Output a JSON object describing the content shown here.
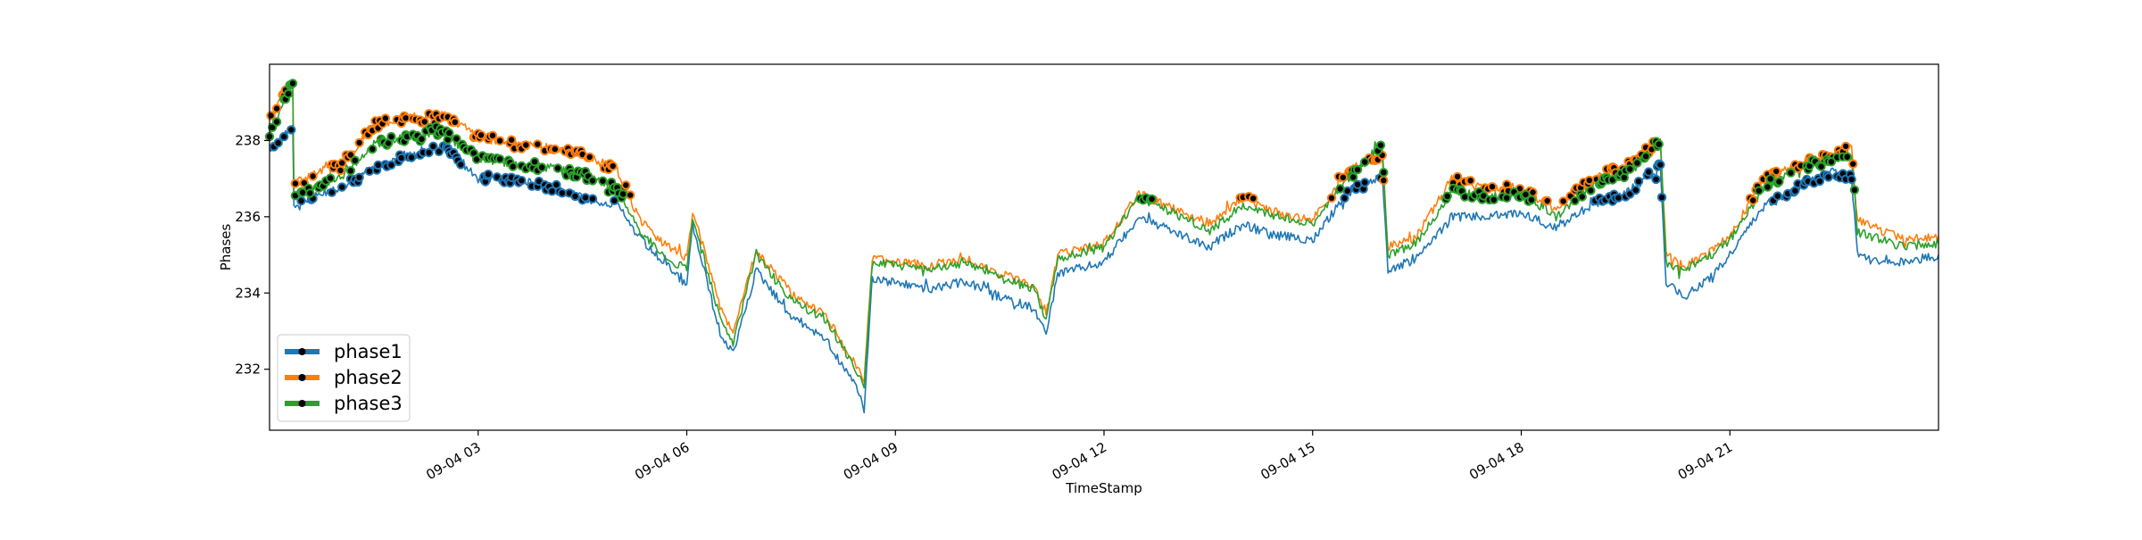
{
  "chart_data": {
    "type": "line",
    "title": "",
    "xlabel": "TimeStamp",
    "ylabel": "Phases",
    "x_range": [
      "2024-09-04 00:00",
      "2024-09-05 00:00"
    ],
    "ylim": [
      230.4,
      240.0
    ],
    "x_ticks": [
      {
        "value": "2024-09-04 03:00",
        "label": "09-04 03"
      },
      {
        "value": "2024-09-04 06:00",
        "label": "09-04 06"
      },
      {
        "value": "2024-09-04 09:00",
        "label": "09-04 09"
      },
      {
        "value": "2024-09-04 12:00",
        "label": "09-04 12"
      },
      {
        "value": "2024-09-04 15:00",
        "label": "09-04 15"
      },
      {
        "value": "2024-09-04 18:00",
        "label": "09-04 18"
      },
      {
        "value": "2024-09-04 21:00",
        "label": "09-04 21"
      }
    ],
    "y_ticks": [
      {
        "value": 232,
        "label": "232"
      },
      {
        "value": 234,
        "label": "234"
      },
      {
        "value": 236,
        "label": "236"
      },
      {
        "value": 238,
        "label": "238"
      }
    ],
    "grid": false,
    "legend_position": "lower-left",
    "series": [
      {
        "name": "phase1",
        "color": "#1f77b4",
        "marker_color": "#000000",
        "points": [
          [
            "2024-09-04 00:00",
            237.8
          ],
          [
            "2024-09-04 00:20",
            238.4
          ],
          [
            "2024-09-04 00:21",
            236.2
          ],
          [
            "2024-09-04 00:45",
            236.6
          ],
          [
            "2024-09-04 01:00",
            236.7
          ],
          [
            "2024-09-04 01:30",
            237.3
          ],
          [
            "2024-09-04 02:00",
            237.6
          ],
          [
            "2024-09-04 02:30",
            237.8
          ],
          [
            "2024-09-04 03:00",
            237.0
          ],
          [
            "2024-09-04 03:30",
            237.0
          ],
          [
            "2024-09-04 04:00",
            236.8
          ],
          [
            "2024-09-04 04:30",
            236.5
          ],
          [
            "2024-09-04 05:00",
            236.3
          ],
          [
            "2024-09-04 05:20",
            235.4
          ],
          [
            "2024-09-04 05:40",
            234.8
          ],
          [
            "2024-09-04 06:00",
            234.2
          ],
          [
            "2024-09-04 06:05",
            235.8
          ],
          [
            "2024-09-04 06:30",
            232.8
          ],
          [
            "2024-09-04 06:40",
            232.4
          ],
          [
            "2024-09-04 07:00",
            234.6
          ],
          [
            "2024-09-04 07:30",
            233.4
          ],
          [
            "2024-09-04 08:00",
            232.8
          ],
          [
            "2024-09-04 08:30",
            231.3
          ],
          [
            "2024-09-04 08:33",
            230.9
          ],
          [
            "2024-09-04 08:40",
            234.4
          ],
          [
            "2024-09-04 09:30",
            234.1
          ],
          [
            "2024-09-04 10:00",
            234.3
          ],
          [
            "2024-09-04 10:30",
            233.9
          ],
          [
            "2024-09-04 11:00",
            233.6
          ],
          [
            "2024-09-04 11:10",
            232.9
          ],
          [
            "2024-09-04 11:20",
            234.5
          ],
          [
            "2024-09-04 12:00",
            234.8
          ],
          [
            "2024-09-04 12:30",
            236.0
          ],
          [
            "2024-09-04 13:00",
            235.6
          ],
          [
            "2024-09-04 13:30",
            235.2
          ],
          [
            "2024-09-04 14:00",
            235.8
          ],
          [
            "2024-09-04 14:30",
            235.5
          ],
          [
            "2024-09-04 15:00",
            235.4
          ],
          [
            "2024-09-04 15:30",
            236.6
          ],
          [
            "2024-09-04 16:00",
            237.1
          ],
          [
            "2024-09-04 16:05",
            234.6
          ],
          [
            "2024-09-04 16:30",
            234.9
          ],
          [
            "2024-09-04 17:00",
            236.0
          ],
          [
            "2024-09-04 17:30",
            236.0
          ],
          [
            "2024-09-04 18:00",
            236.1
          ],
          [
            "2024-09-04 18:30",
            235.7
          ],
          [
            "2024-09-04 19:00",
            236.3
          ],
          [
            "2024-09-04 19:30",
            236.6
          ],
          [
            "2024-09-04 20:00",
            237.3
          ],
          [
            "2024-09-04 20:05",
            234.3
          ],
          [
            "2024-09-04 20:20",
            233.9
          ],
          [
            "2024-09-04 20:40",
            234.3
          ],
          [
            "2024-09-04 21:00",
            235.0
          ],
          [
            "2024-09-04 21:30",
            236.3
          ],
          [
            "2024-09-04 22:00",
            236.8
          ],
          [
            "2024-09-04 22:30",
            237.2
          ],
          [
            "2024-09-04 22:45",
            237.0
          ],
          [
            "2024-09-04 22:50",
            235.0
          ],
          [
            "2024-09-04 23:30",
            234.8
          ],
          [
            "2024-09-05 00:00",
            235.0
          ]
        ]
      },
      {
        "name": "phase2",
        "color": "#ff7f0e",
        "marker_color": "#000000",
        "points": [
          [
            "2024-09-04 00:00",
            238.5
          ],
          [
            "2024-09-04 00:20",
            239.6
          ],
          [
            "2024-09-04 00:21",
            236.9
          ],
          [
            "2024-09-04 00:45",
            237.2
          ],
          [
            "2024-09-04 01:00",
            237.3
          ],
          [
            "2024-09-04 01:30",
            238.4
          ],
          [
            "2024-09-04 02:00",
            238.6
          ],
          [
            "2024-09-04 02:30",
            238.7
          ],
          [
            "2024-09-04 03:00",
            238.1
          ],
          [
            "2024-09-04 03:30",
            237.9
          ],
          [
            "2024-09-04 04:00",
            237.8
          ],
          [
            "2024-09-04 04:30",
            237.7
          ],
          [
            "2024-09-04 05:00",
            237.2
          ],
          [
            "2024-09-04 05:20",
            235.9
          ],
          [
            "2024-09-04 05:40",
            235.3
          ],
          [
            "2024-09-04 06:00",
            234.9
          ],
          [
            "2024-09-04 06:05",
            236.2
          ],
          [
            "2024-09-04 06:30",
            233.5
          ],
          [
            "2024-09-04 06:40",
            233.0
          ],
          [
            "2024-09-04 07:00",
            235.1
          ],
          [
            "2024-09-04 07:30",
            234.0
          ],
          [
            "2024-09-04 08:00",
            233.4
          ],
          [
            "2024-09-04 08:30",
            231.9
          ],
          [
            "2024-09-04 08:33",
            231.6
          ],
          [
            "2024-09-04 08:40",
            234.9
          ],
          [
            "2024-09-04 09:30",
            234.7
          ],
          [
            "2024-09-04 10:00",
            234.9
          ],
          [
            "2024-09-04 10:30",
            234.5
          ],
          [
            "2024-09-04 11:00",
            234.2
          ],
          [
            "2024-09-04 11:10",
            233.5
          ],
          [
            "2024-09-04 11:20",
            235.0
          ],
          [
            "2024-09-04 12:00",
            235.3
          ],
          [
            "2024-09-04 12:30",
            236.6
          ],
          [
            "2024-09-04 13:00",
            236.2
          ],
          [
            "2024-09-04 13:30",
            235.8
          ],
          [
            "2024-09-04 14:00",
            236.5
          ],
          [
            "2024-09-04 14:30",
            236.1
          ],
          [
            "2024-09-04 15:00",
            235.9
          ],
          [
            "2024-09-04 15:30",
            237.2
          ],
          [
            "2024-09-04 16:00",
            237.6
          ],
          [
            "2024-09-04 16:05",
            235.2
          ],
          [
            "2024-09-04 16:30",
            235.5
          ],
          [
            "2024-09-04 17:00",
            237.0
          ],
          [
            "2024-09-04 17:30",
            236.7
          ],
          [
            "2024-09-04 18:00",
            236.8
          ],
          [
            "2024-09-04 18:30",
            236.2
          ],
          [
            "2024-09-04 19:00",
            237.0
          ],
          [
            "2024-09-04 19:30",
            237.3
          ],
          [
            "2024-09-04 20:00",
            238.0
          ],
          [
            "2024-09-04 20:05",
            235.0
          ],
          [
            "2024-09-04 20:20",
            234.7
          ],
          [
            "2024-09-04 20:40",
            235.0
          ],
          [
            "2024-09-04 21:00",
            235.5
          ],
          [
            "2024-09-04 21:30",
            237.0
          ],
          [
            "2024-09-04 22:00",
            237.4
          ],
          [
            "2024-09-04 22:30",
            237.6
          ],
          [
            "2024-09-04 22:45",
            237.8
          ],
          [
            "2024-09-04 22:50",
            235.9
          ],
          [
            "2024-09-04 23:30",
            235.4
          ],
          [
            "2024-09-05 00:00",
            235.5
          ]
        ]
      },
      {
        "name": "phase3",
        "color": "#2ca02c",
        "marker_color": "#000000",
        "points": [
          [
            "2024-09-04 00:00",
            238.2
          ],
          [
            "2024-09-04 00:20",
            239.5
          ],
          [
            "2024-09-04 00:21",
            236.5
          ],
          [
            "2024-09-04 00:45",
            236.9
          ],
          [
            "2024-09-04 01:00",
            237.0
          ],
          [
            "2024-09-04 01:30",
            237.9
          ],
          [
            "2024-09-04 02:00",
            238.1
          ],
          [
            "2024-09-04 02:30",
            238.2
          ],
          [
            "2024-09-04 03:00",
            237.5
          ],
          [
            "2024-09-04 03:30",
            237.4
          ],
          [
            "2024-09-04 04:00",
            237.3
          ],
          [
            "2024-09-04 04:30",
            237.1
          ],
          [
            "2024-09-04 05:00",
            236.8
          ],
          [
            "2024-09-04 05:20",
            235.6
          ],
          [
            "2024-09-04 05:40",
            235.0
          ],
          [
            "2024-09-04 06:00",
            234.6
          ],
          [
            "2024-09-04 06:05",
            236.0
          ],
          [
            "2024-09-04 06:30",
            233.2
          ],
          [
            "2024-09-04 06:40",
            232.7
          ],
          [
            "2024-09-04 07:00",
            235.0
          ],
          [
            "2024-09-04 07:30",
            233.8
          ],
          [
            "2024-09-04 08:00",
            233.3
          ],
          [
            "2024-09-04 08:30",
            231.8
          ],
          [
            "2024-09-04 08:33",
            231.5
          ],
          [
            "2024-09-04 08:40",
            234.8
          ],
          [
            "2024-09-04 09:30",
            234.6
          ],
          [
            "2024-09-04 10:00",
            234.8
          ],
          [
            "2024-09-04 10:30",
            234.4
          ],
          [
            "2024-09-04 11:00",
            234.1
          ],
          [
            "2024-09-04 11:10",
            233.3
          ],
          [
            "2024-09-04 11:20",
            234.9
          ],
          [
            "2024-09-04 12:00",
            235.2
          ],
          [
            "2024-09-04 12:30",
            236.5
          ],
          [
            "2024-09-04 13:00",
            236.1
          ],
          [
            "2024-09-04 13:30",
            235.6
          ],
          [
            "2024-09-04 14:00",
            236.3
          ],
          [
            "2024-09-04 14:30",
            236.0
          ],
          [
            "2024-09-04 15:00",
            235.8
          ],
          [
            "2024-09-04 15:30",
            237.0
          ],
          [
            "2024-09-04 16:00",
            237.9
          ],
          [
            "2024-09-04 16:05",
            235.0
          ],
          [
            "2024-09-04 16:30",
            235.3
          ],
          [
            "2024-09-04 17:00",
            236.7
          ],
          [
            "2024-09-04 17:30",
            236.5
          ],
          [
            "2024-09-04 18:00",
            236.6
          ],
          [
            "2024-09-04 18:30",
            236.0
          ],
          [
            "2024-09-04 19:00",
            236.8
          ],
          [
            "2024-09-04 19:30",
            237.1
          ],
          [
            "2024-09-04 20:00",
            238.0
          ],
          [
            "2024-09-04 20:05",
            234.8
          ],
          [
            "2024-09-04 20:20",
            234.6
          ],
          [
            "2024-09-04 20:40",
            234.9
          ],
          [
            "2024-09-04 21:00",
            235.4
          ],
          [
            "2024-09-04 21:30",
            236.8
          ],
          [
            "2024-09-04 22:00",
            237.3
          ],
          [
            "2024-09-04 22:30",
            237.5
          ],
          [
            "2024-09-04 22:45",
            237.6
          ],
          [
            "2024-09-04 22:50",
            235.6
          ],
          [
            "2024-09-04 23:30",
            235.2
          ],
          [
            "2024-09-05 00:00",
            235.3
          ]
        ]
      }
    ]
  }
}
